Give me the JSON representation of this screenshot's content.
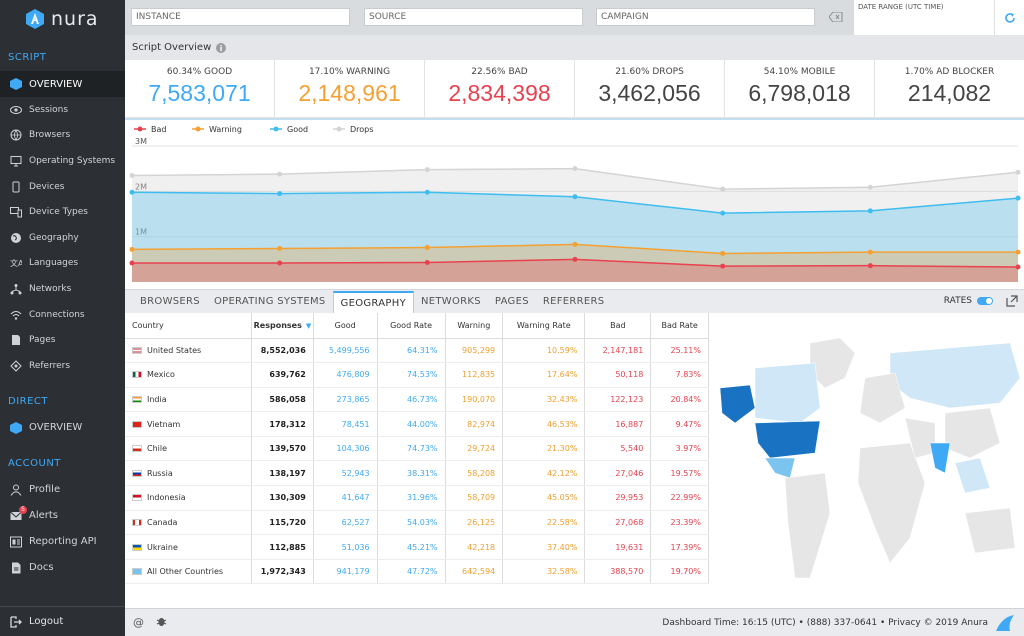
{
  "app": {
    "name": "nura"
  },
  "sidebar": {
    "script_label": "SCRIPT",
    "script_items": [
      {
        "label": "OVERVIEW",
        "icon": "overview-icon",
        "active": true
      },
      {
        "label": "Sessions",
        "icon": "eye-icon"
      },
      {
        "label": "Browsers",
        "icon": "globe-icon"
      },
      {
        "label": "Operating Systems",
        "icon": "monitor-icon"
      },
      {
        "label": "Devices",
        "icon": "phone-icon"
      },
      {
        "label": "Device Types",
        "icon": "devices-icon"
      },
      {
        "label": "Geography",
        "icon": "geography-icon"
      },
      {
        "label": "Languages",
        "icon": "languages-icon"
      },
      {
        "label": "Networks",
        "icon": "network-icon"
      },
      {
        "label": "Connections",
        "icon": "wifi-icon"
      },
      {
        "label": "Pages",
        "icon": "page-icon"
      },
      {
        "label": "Referrers",
        "icon": "referrer-icon"
      }
    ],
    "direct_label": "DIRECT",
    "direct_items": [
      {
        "label": "OVERVIEW",
        "icon": "direct-overview-icon"
      }
    ],
    "account_label": "ACCOUNT",
    "account_items": [
      {
        "label": "Profile",
        "icon": "user-icon"
      },
      {
        "label": "Alerts",
        "icon": "mail-icon",
        "badge": "5"
      },
      {
        "label": "Reporting API",
        "icon": "api-icon"
      },
      {
        "label": "Docs",
        "icon": "doc-icon"
      }
    ],
    "logout": "Logout"
  },
  "filters": {
    "instance": "INSTANCE",
    "source": "SOURCE",
    "campaign": "CAMPAIGN",
    "date_range": "DATE RANGE (UTC TIME)"
  },
  "overview": {
    "title": "Script Overview"
  },
  "stats": [
    {
      "label": "60.34% GOOD",
      "value": "7,583,071",
      "color": "#3fa9f5"
    },
    {
      "label": "17.10% WARNING",
      "value": "2,148,961",
      "color": "#f5a033"
    },
    {
      "label": "22.56% BAD",
      "value": "2,834,398",
      "color": "#e8424f"
    },
    {
      "label": "21.60% DROPS",
      "value": "3,462,056",
      "color": "#444444"
    },
    {
      "label": "54.10% MOBILE",
      "value": "6,798,018",
      "color": "#444444"
    },
    {
      "label": "1.70% AD BLOCKER",
      "value": "214,082",
      "color": "#444444"
    }
  ],
  "chart_data": {
    "type": "area",
    "legend": [
      "Bad",
      "Warning",
      "Good",
      "Drops"
    ],
    "legend_position": "top-left",
    "y_ticks": [
      "3M",
      "2M",
      "1M"
    ],
    "ylim": [
      0,
      3000000
    ],
    "grid": true,
    "series": [
      {
        "name": "Drops",
        "color": "#d4d4d4",
        "values": [
          2350000,
          2380000,
          2480000,
          2500000,
          2050000,
          2090000,
          2420000
        ]
      },
      {
        "name": "Good",
        "color": "#3fbcf0",
        "values": [
          1980000,
          1950000,
          1980000,
          1880000,
          1520000,
          1570000,
          1850000
        ]
      },
      {
        "name": "Warning",
        "color": "#f5a033",
        "values": [
          720000,
          740000,
          760000,
          830000,
          630000,
          660000,
          660000
        ]
      },
      {
        "name": "Bad",
        "color": "#e8424f",
        "values": [
          420000,
          420000,
          430000,
          500000,
          350000,
          360000,
          330000
        ]
      }
    ]
  },
  "tabs": [
    "BROWSERS",
    "OPERATING SYSTEMS",
    "GEOGRAPHY",
    "NETWORKS",
    "PAGES",
    "REFERRERS"
  ],
  "active_tab": "GEOGRAPHY",
  "rates_label": "RATES",
  "table": {
    "headers": [
      "Country",
      "Responses",
      "Good",
      "Good Rate",
      "Warning",
      "Warning Rate",
      "Bad",
      "Bad Rate"
    ],
    "rows": [
      {
        "country": "United States",
        "flag": "us",
        "responses": "8,552,036",
        "good": "5,499,556",
        "good_rate": "64.31%",
        "warning": "905,299",
        "warning_rate": "10.59%",
        "bad": "2,147,181",
        "bad_rate": "25.11%"
      },
      {
        "country": "Mexico",
        "flag": "mx",
        "responses": "639,762",
        "good": "476,809",
        "good_rate": "74.53%",
        "warning": "112,835",
        "warning_rate": "17.64%",
        "bad": "50,118",
        "bad_rate": "7.83%"
      },
      {
        "country": "India",
        "flag": "in",
        "responses": "586,058",
        "good": "273,865",
        "good_rate": "46.73%",
        "warning": "190,070",
        "warning_rate": "32.43%",
        "bad": "122,123",
        "bad_rate": "20.84%"
      },
      {
        "country": "Vietnam",
        "flag": "vn",
        "responses": "178,312",
        "good": "78,451",
        "good_rate": "44.00%",
        "warning": "82,974",
        "warning_rate": "46.53%",
        "bad": "16,887",
        "bad_rate": "9.47%"
      },
      {
        "country": "Chile",
        "flag": "cl",
        "responses": "139,570",
        "good": "104,306",
        "good_rate": "74.73%",
        "warning": "29,724",
        "warning_rate": "21.30%",
        "bad": "5,540",
        "bad_rate": "3.97%"
      },
      {
        "country": "Russia",
        "flag": "ru",
        "responses": "138,197",
        "good": "52,943",
        "good_rate": "38.31%",
        "warning": "58,208",
        "warning_rate": "42.12%",
        "bad": "27,046",
        "bad_rate": "19.57%"
      },
      {
        "country": "Indonesia",
        "flag": "id",
        "responses": "130,309",
        "good": "41,647",
        "good_rate": "31.96%",
        "warning": "58,709",
        "warning_rate": "45.05%",
        "bad": "29,953",
        "bad_rate": "22.99%"
      },
      {
        "country": "Canada",
        "flag": "ca",
        "responses": "115,720",
        "good": "62,527",
        "good_rate": "54.03%",
        "warning": "26,125",
        "warning_rate": "22.58%",
        "bad": "27,068",
        "bad_rate": "23.39%"
      },
      {
        "country": "Ukraine",
        "flag": "ua",
        "responses": "112,885",
        "good": "51,036",
        "good_rate": "45.21%",
        "warning": "42,218",
        "warning_rate": "37.40%",
        "bad": "19,631",
        "bad_rate": "17.39%"
      },
      {
        "country": "All Other Countries",
        "flag": "globe",
        "responses": "1,972,343",
        "good": "941,179",
        "good_rate": "47.72%",
        "warning": "642,594",
        "warning_rate": "32.58%",
        "bad": "388,570",
        "bad_rate": "19.70%"
      }
    ]
  },
  "footer": {
    "text": "Dashboard Time: 16:15 (UTC)  •  (888) 337-0641  •  Privacy  © 2019 Anura"
  }
}
